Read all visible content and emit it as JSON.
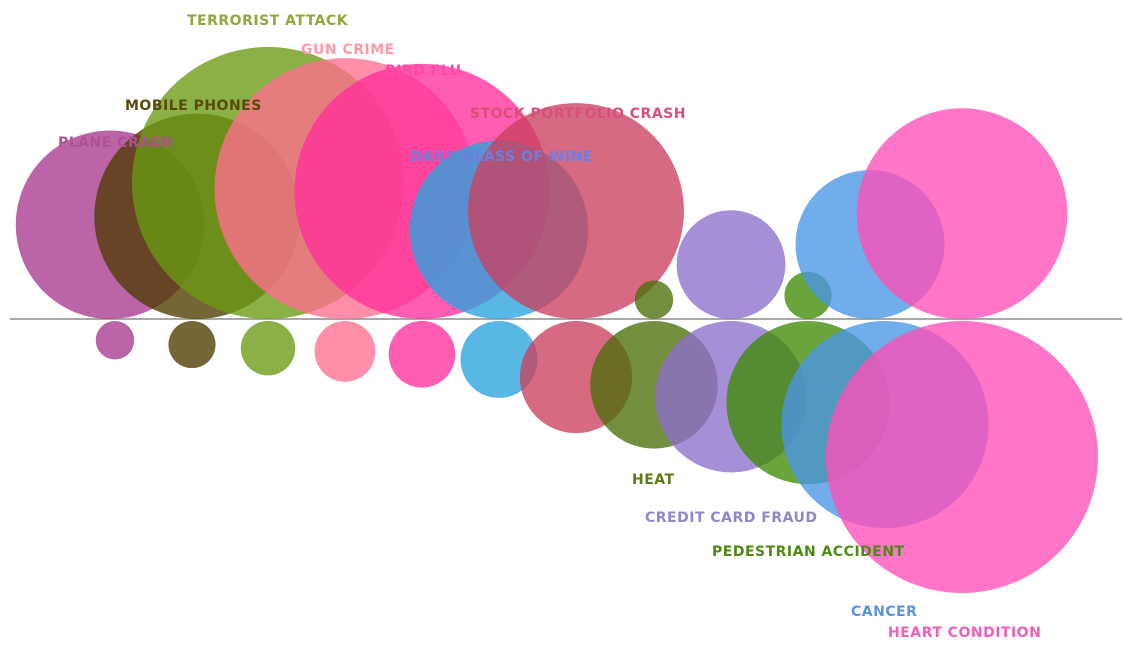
{
  "chart_data": {
    "type": "bubble",
    "encoding": "each risk has a perceived-risk bubble above the axis and an actual-risk bubble below it",
    "series": [
      {
        "name": "PLANE CRASH",
        "color": "#a8388f",
        "perceived": 48,
        "actual": 2
      },
      {
        "name": "MOBILE PHONES",
        "color": "#4e3b00",
        "perceived": 57,
        "actual": 3
      },
      {
        "name": "TERRORIST ATTACK",
        "color": "#6a9a12",
        "perceived": 100,
        "actual": 4
      },
      {
        "name": "GUN CRIME",
        "color": "#ff6e8f",
        "perceived": 92,
        "actual": 5
      },
      {
        "name": "BIRD FLU",
        "color": "#ff2f9b",
        "perceived": 88,
        "actual": 6
      },
      {
        "name": "DAILY GLASS OF WINE",
        "color": "#2aa3de",
        "perceived": 43,
        "actual": 8
      },
      {
        "name": "STOCK PORTFOLIO CRASH",
        "color": "#c9405f",
        "perceived": 63,
        "actual": 17
      },
      {
        "name": "HEAT",
        "color": "#4d6e0a",
        "perceived": 2,
        "actual": 22
      },
      {
        "name": "CREDIT CARD FRAUD",
        "color": "#8c70cc",
        "perceived": 16,
        "actual": 31
      },
      {
        "name": "PEDESTRIAN ACCIDENT",
        "color": "#3f8a05",
        "perceived": 3,
        "actual": 36
      },
      {
        "name": "CANCER",
        "color": "#4a96e6",
        "perceived": 30,
        "actual": 58
      },
      {
        "name": "HEART CONDITION",
        "color": "#ff4eb8",
        "perceived": 60,
        "actual": 100
      }
    ],
    "labels": [
      {
        "text": "TERRORIST ATTACK",
        "color": "#8fa83c"
      },
      {
        "text": "GUN CRIME",
        "color": "#ff9aa8"
      },
      {
        "text": "BIRD FLU",
        "color": "#ff4aa8"
      },
      {
        "text": "MOBILE PHONES",
        "color": "#5a4a0a"
      },
      {
        "text": "STOCK PORTFOLIO CRASH",
        "color": "#d8507a"
      },
      {
        "text": "PLANE CRASH",
        "color": "#b04f95"
      },
      {
        "text": "DAILY GLASS OF WINE",
        "color": "#6c7ee0"
      },
      {
        "text": "HEAT",
        "color": "#5b7a10"
      },
      {
        "text": "CREDIT CARD FRAUD",
        "color": "#8f86cc"
      },
      {
        "text": "PEDESTRIAN ACCIDENT",
        "color": "#4d8a10"
      },
      {
        "text": "CANCER",
        "color": "#5a92dd"
      },
      {
        "text": "HEART CONDITION",
        "color": "#f060b8"
      }
    ]
  }
}
